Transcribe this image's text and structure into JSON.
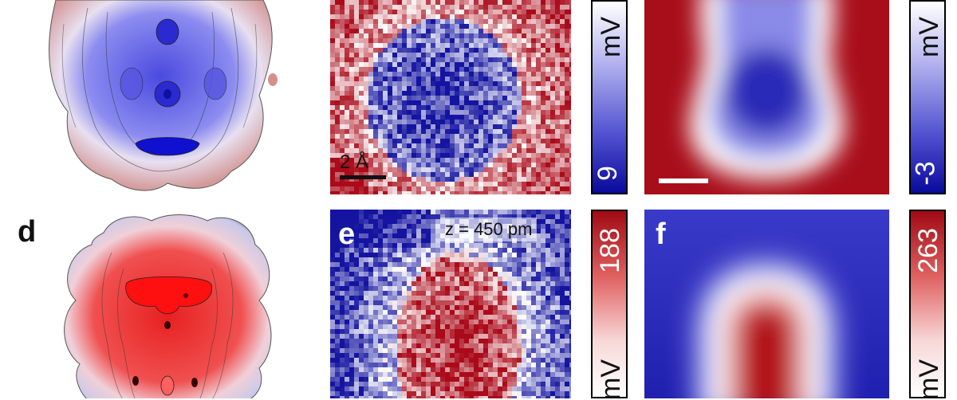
{
  "panels": {
    "d": {
      "label": "d"
    },
    "e": {
      "label": "e",
      "height_label": "z = 450 pm"
    },
    "f": {
      "label": "f"
    }
  },
  "scale_bar": {
    "label": "2 Å"
  },
  "colorbars": {
    "b_unit": "mV",
    "b_value": "9",
    "c_unit": "mV",
    "c_value": "-3",
    "e_value": "188",
    "e_unit": "mV",
    "f_value": "263",
    "f_unit": "mV"
  }
}
